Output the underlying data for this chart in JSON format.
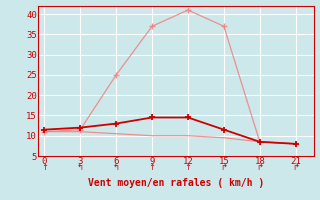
{
  "xlabel": "Vent moyen/en rafales ( km/h )",
  "x": [
    0,
    3,
    6,
    9,
    12,
    15,
    18,
    21
  ],
  "line_gust": [
    11.0,
    11.5,
    25.0,
    37.0,
    41.0,
    37.0,
    8.5,
    8.0
  ],
  "line_mean": [
    11.5,
    12.0,
    13.0,
    14.5,
    14.5,
    11.5,
    8.5,
    8.0
  ],
  "line_low": [
    11.0,
    11.0,
    10.5,
    10.0,
    10.0,
    9.5,
    8.5,
    8.0
  ],
  "color_gust": "#f08080",
  "color_mean": "#cc0000",
  "color_low": "#f08080",
  "bg_color": "#cce8ea",
  "grid_color": "#ffffff",
  "ylim": [
    5,
    42
  ],
  "yticks": [
    5,
    10,
    15,
    20,
    25,
    30,
    35,
    40
  ],
  "xticks": [
    0,
    3,
    6,
    9,
    12,
    15,
    18,
    21
  ],
  "tick_color": "#cc0000",
  "label_color": "#cc0000",
  "arrow_chars": [
    "↑",
    "↰",
    "↰",
    "↑",
    "↑",
    "↱",
    "↱",
    "↱"
  ]
}
